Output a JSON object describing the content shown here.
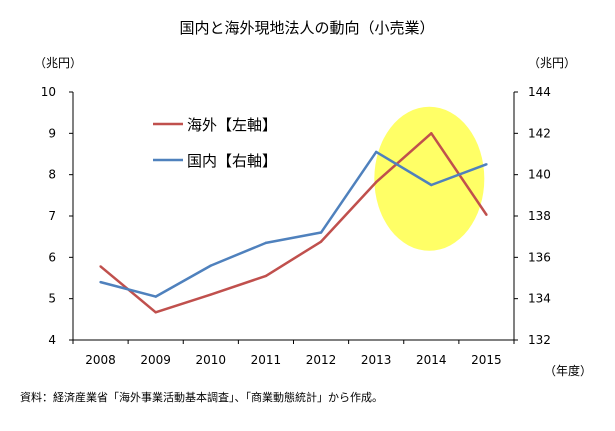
{
  "chart_data": {
    "type": "line",
    "title": "国内と海外現地法人の動向（小売業）",
    "y_left_label": "（兆円）",
    "y_right_label": "（兆円）",
    "x_label": "（年度）",
    "source": "資料：経済産業省「海外事業活動基本調査」、「商業動態統計」から作成。",
    "categories": [
      "2008",
      "2009",
      "2010",
      "2011",
      "2012",
      "2013",
      "2014",
      "2015"
    ],
    "ylim_left": [
      4,
      10
    ],
    "ylim_right": [
      132,
      144
    ],
    "yticks_left": [
      4,
      5,
      6,
      7,
      8,
      9,
      10
    ],
    "yticks_right": [
      132,
      134,
      136,
      138,
      140,
      142,
      144
    ],
    "grid": false,
    "legend_position": "top-left",
    "series": [
      {
        "name": "海外【左軸】",
        "axis": "left",
        "color": "#c0504d",
        "values": [
          5.78,
          4.67,
          5.1,
          5.55,
          6.38,
          7.82,
          9.0,
          7.03
        ]
      },
      {
        "name": "国内【右軸】",
        "axis": "right",
        "color": "#4f81bd",
        "values": [
          134.8,
          134.1,
          135.6,
          136.7,
          137.2,
          141.1,
          139.5,
          140.5
        ]
      }
    ],
    "highlight": {
      "shape": "ellipse",
      "color": "#ffff66",
      "around_categories": [
        "2014"
      ]
    }
  }
}
